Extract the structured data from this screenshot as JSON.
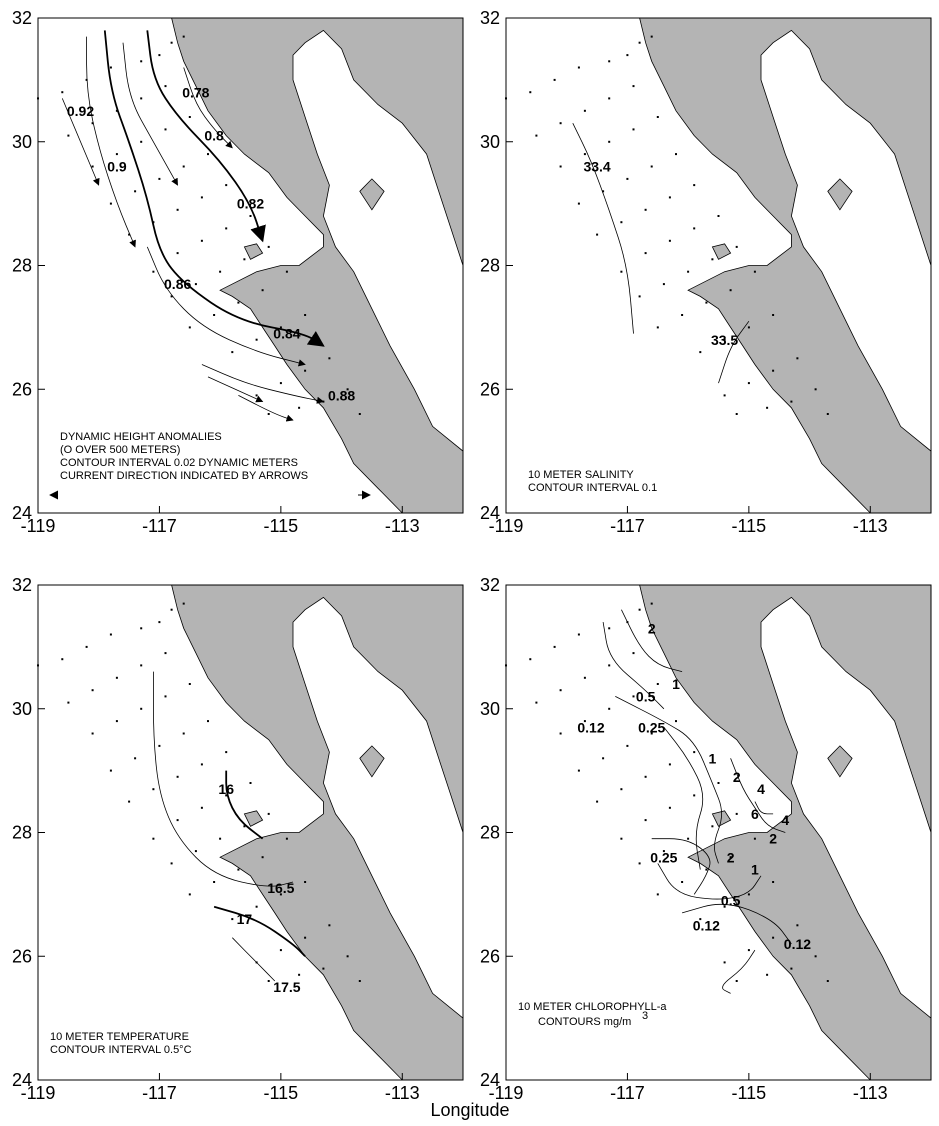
{
  "x_axis_label": "Longitude",
  "x_ticks": [
    "-119",
    "-117",
    "-115",
    "-113"
  ],
  "y_ticks": [
    "24",
    "26",
    "28",
    "30",
    "32"
  ],
  "colors": {
    "land": "#b4b4b4",
    "line": "#000000"
  },
  "panels": [
    {
      "id": "dynamic-height",
      "annotation": [
        "DYNAMIC HEIGHT ANOMALIES",
        "(O OVER 500 METERS)",
        "CONTOUR INTERVAL 0.02 DYNAMIC METERS",
        "CURRENT DIRECTION INDICATED BY ARROWS"
      ],
      "contour_labels": [
        {
          "text": "0.78",
          "lon": -116.4,
          "lat": 30.8
        },
        {
          "text": "0.8",
          "lon": -116.1,
          "lat": 30.1
        },
        {
          "text": "0.92",
          "lon": -118.3,
          "lat": 30.5
        },
        {
          "text": "0.9",
          "lon": -117.7,
          "lat": 29.6
        },
        {
          "text": "0.82",
          "lon": -115.5,
          "lat": 29.0
        },
        {
          "text": "0.86",
          "lon": -116.7,
          "lat": 27.7
        },
        {
          "text": "0.84",
          "lon": -114.9,
          "lat": 26.9
        },
        {
          "text": "0.88",
          "lon": -114.0,
          "lat": 25.9
        }
      ]
    },
    {
      "id": "salinity",
      "annotation": [
        "10 METER SALINITY",
        "CONTOUR INTERVAL 0.1"
      ],
      "contour_labels": [
        {
          "text": "33.4",
          "lon": -117.5,
          "lat": 29.6
        },
        {
          "text": "33.5",
          "lon": -115.4,
          "lat": 26.8
        }
      ]
    },
    {
      "id": "temperature",
      "annotation": [
        "10 METER TEMPERATURE",
        "CONTOUR INTERVAL 0.5°C"
      ],
      "contour_labels": [
        {
          "text": "16",
          "lon": -115.9,
          "lat": 28.7
        },
        {
          "text": "16.5",
          "lon": -115.0,
          "lat": 27.1
        },
        {
          "text": "17",
          "lon": -115.6,
          "lat": 26.6
        },
        {
          "text": "17.5",
          "lon": -114.9,
          "lat": 25.5
        }
      ]
    },
    {
      "id": "chlorophyll",
      "annotation": [
        "10 METER CHLOROPHYLL-a",
        "CONTOURS mg/m",
        "3"
      ],
      "contour_labels": [
        {
          "text": "2",
          "lon": -116.6,
          "lat": 31.3
        },
        {
          "text": "1",
          "lon": -116.2,
          "lat": 30.4
        },
        {
          "text": "0.5",
          "lon": -116.7,
          "lat": 30.2
        },
        {
          "text": "0.12",
          "lon": -117.6,
          "lat": 29.7
        },
        {
          "text": "0.25",
          "lon": -116.6,
          "lat": 29.7
        },
        {
          "text": "1",
          "lon": -115.6,
          "lat": 29.2
        },
        {
          "text": "2",
          "lon": -115.2,
          "lat": 28.9
        },
        {
          "text": "4",
          "lon": -114.8,
          "lat": 28.7
        },
        {
          "text": "6",
          "lon": -114.9,
          "lat": 28.3
        },
        {
          "text": "4",
          "lon": -114.4,
          "lat": 28.2
        },
        {
          "text": "2",
          "lon": -114.6,
          "lat": 27.9
        },
        {
          "text": "0.25",
          "lon": -116.4,
          "lat": 27.6
        },
        {
          "text": "2",
          "lon": -115.3,
          "lat": 27.6
        },
        {
          "text": "1",
          "lon": -114.9,
          "lat": 27.4
        },
        {
          "text": "0.5",
          "lon": -115.3,
          "lat": 26.9
        },
        {
          "text": "0.12",
          "lon": -115.7,
          "lat": 26.5
        },
        {
          "text": "0.12",
          "lon": -114.2,
          "lat": 26.2
        }
      ]
    }
  ],
  "stations": [
    [
      -116.6,
      31.7
    ],
    [
      -116.8,
      31.6
    ],
    [
      -117.0,
      31.4
    ],
    [
      -117.3,
      31.3
    ],
    [
      -117.8,
      31.2
    ],
    [
      -118.2,
      31.0
    ],
    [
      -118.6,
      30.8
    ],
    [
      -119.0,
      30.7
    ],
    [
      -116.9,
      30.9
    ],
    [
      -117.3,
      30.7
    ],
    [
      -117.7,
      30.5
    ],
    [
      -118.1,
      30.3
    ],
    [
      -118.5,
      30.1
    ],
    [
      -116.5,
      30.4
    ],
    [
      -116.9,
      30.2
    ],
    [
      -117.3,
      30.0
    ],
    [
      -117.7,
      29.8
    ],
    [
      -118.1,
      29.6
    ],
    [
      -116.2,
      29.8
    ],
    [
      -116.6,
      29.6
    ],
    [
      -117.0,
      29.4
    ],
    [
      -117.4,
      29.2
    ],
    [
      -117.8,
      29.0
    ],
    [
      -115.9,
      29.3
    ],
    [
      -116.3,
      29.1
    ],
    [
      -116.7,
      28.9
    ],
    [
      -117.1,
      28.7
    ],
    [
      -117.5,
      28.5
    ],
    [
      -115.5,
      28.8
    ],
    [
      -115.9,
      28.6
    ],
    [
      -116.3,
      28.4
    ],
    [
      -116.7,
      28.2
    ],
    [
      -117.1,
      27.9
    ],
    [
      -115.2,
      28.3
    ],
    [
      -115.6,
      28.1
    ],
    [
      -116.0,
      27.9
    ],
    [
      -116.4,
      27.7
    ],
    [
      -116.8,
      27.5
    ],
    [
      -114.9,
      27.9
    ],
    [
      -115.3,
      27.6
    ],
    [
      -115.7,
      27.4
    ],
    [
      -116.1,
      27.2
    ],
    [
      -116.5,
      27.0
    ],
    [
      -114.6,
      27.2
    ],
    [
      -115.0,
      27.0
    ],
    [
      -115.4,
      26.8
    ],
    [
      -115.8,
      26.6
    ],
    [
      -114.2,
      26.5
    ],
    [
      -114.6,
      26.3
    ],
    [
      -115.0,
      26.1
    ],
    [
      -115.4,
      25.9
    ],
    [
      -113.9,
      26.0
    ],
    [
      -114.3,
      25.8
    ],
    [
      -114.7,
      25.7
    ],
    [
      -115.2,
      25.6
    ],
    [
      -113.7,
      25.6
    ]
  ]
}
